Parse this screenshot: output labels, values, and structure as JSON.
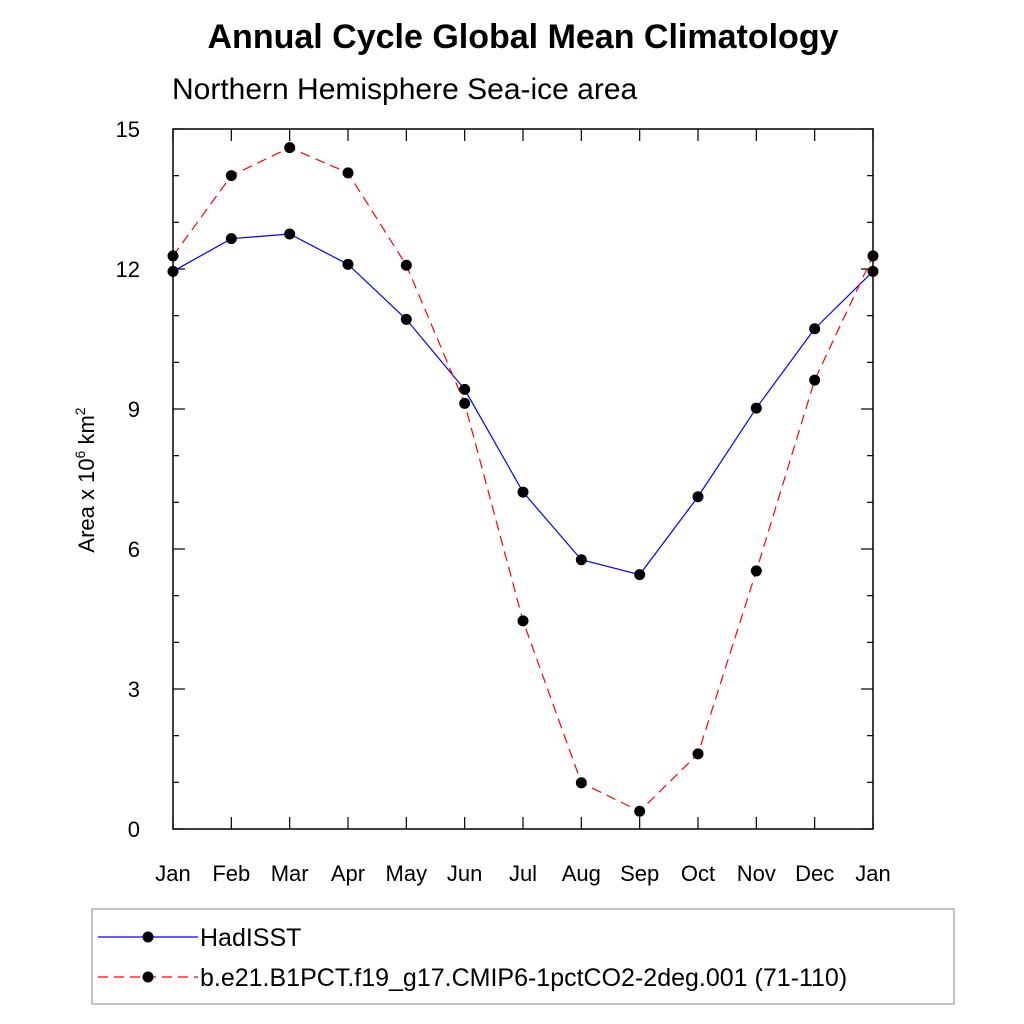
{
  "chart_data": {
    "type": "line",
    "title": "Annual Cycle Global Mean Climatology",
    "subtitle": "Northern Hemisphere Sea-ice area",
    "ylabel_prefix": "Area x 10",
    "ylabel_exp": "6",
    "ylabel_unit": " km",
    "ylabel_unit_exp": "2",
    "categories": [
      "Jan",
      "Feb",
      "Mar",
      "Apr",
      "May",
      "Jun",
      "Jul",
      "Aug",
      "Sep",
      "Oct",
      "Nov",
      "Dec",
      "Jan"
    ],
    "ylim": [
      0,
      15
    ],
    "yticks": [
      0,
      3,
      6,
      9,
      12,
      15
    ],
    "grid": false,
    "legend_position": "bottom",
    "series": [
      {
        "name": "HadISST",
        "color": "#0000ff",
        "dash": "solid",
        "values": [
          11.95,
          12.65,
          12.75,
          12.1,
          10.92,
          9.42,
          7.22,
          5.77,
          5.45,
          7.12,
          9.02,
          10.72,
          11.95
        ]
      },
      {
        "name": "b.e21.B1PCT.f19_g17.CMIP6-1pctCO2-2deg.001 (71-110)",
        "color": "#ff0000",
        "dash": "dashed",
        "values": [
          12.28,
          14.0,
          14.6,
          14.06,
          12.08,
          9.12,
          4.46,
          0.99,
          0.38,
          1.61,
          5.53,
          9.62,
          12.28
        ]
      }
    ]
  }
}
